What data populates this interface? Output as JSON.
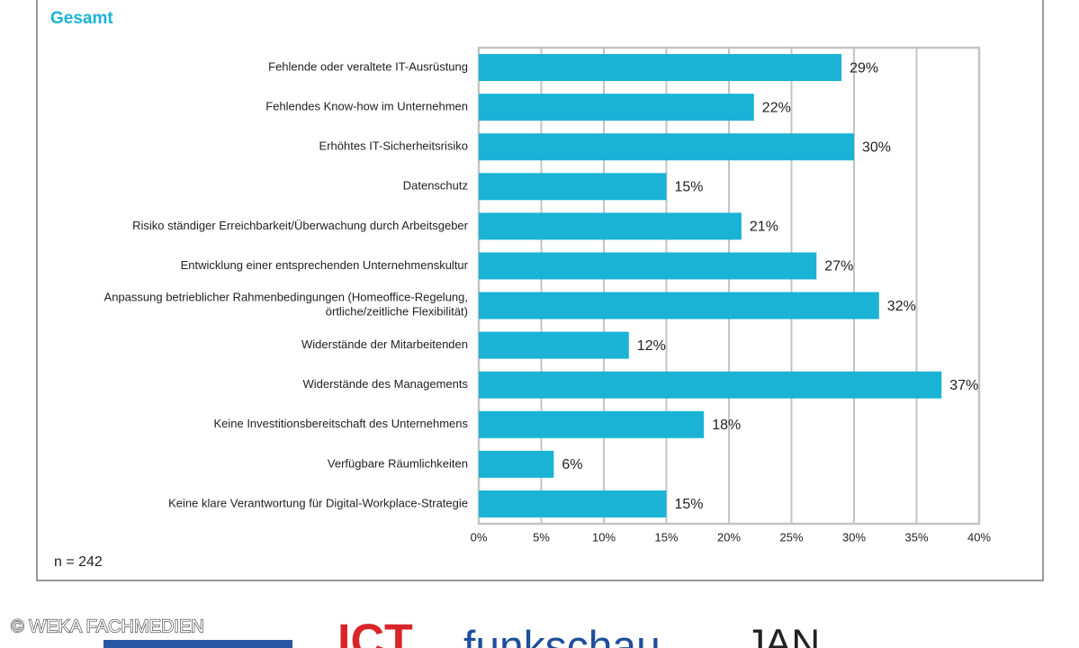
{
  "chart_data": {
    "type": "hbar",
    "subtitle": "Gesamt",
    "categories": [
      "Fehlende oder veraltete IT-Ausrüstung",
      "Fehlendes Know-how im Unternehmen",
      "Erhöhtes IT-Sicherheitsrisiko",
      "Datenschutz",
      "Risiko ständiger Erreichbarkeit/Überwachung durch Arbeitsgeber",
      "Entwicklung einer entsprechenden Unternehmenskultur",
      "Anpassung betrieblicher Rahmenbedingungen (Homeoffice-Regelung,\nörtliche/zeitliche Flexibilität)",
      "Widerstände der Mitarbeitenden",
      "Widerstände des Managements",
      "Keine Investitionsbereitschaft des Unternehmens",
      "Verfügbare Räumlichkeiten",
      "Keine klare Verantwortung für Digital-Workplace-Strategie"
    ],
    "values": [
      29,
      22,
      30,
      15,
      21,
      27,
      32,
      12,
      37,
      18,
      6,
      15
    ],
    "value_labels": [
      "29%",
      "22%",
      "30%",
      "15%",
      "21%",
      "27%",
      "32%",
      "12%",
      "37%",
      "18%",
      "6%",
      "15%"
    ],
    "color": "#1ab3d6",
    "xlim": [
      0,
      40
    ],
    "xticks": [
      {
        "value": 0,
        "label": "0%"
      },
      {
        "value": 5,
        "label": "5%"
      },
      {
        "value": 10,
        "label": "10%"
      },
      {
        "value": 15,
        "label": "15%"
      },
      {
        "value": 20,
        "label": "20%"
      },
      {
        "value": 25,
        "label": "25%"
      },
      {
        "value": 30,
        "label": "30%"
      },
      {
        "value": 35,
        "label": "35%"
      },
      {
        "value": 40,
        "label": "40%"
      }
    ],
    "grid": true,
    "note": "n = 242"
  },
  "footer": {
    "copyright": "© WEKA FACHMEDIEN",
    "logos": [
      "ICT",
      "funkschau",
      "JAN"
    ]
  }
}
